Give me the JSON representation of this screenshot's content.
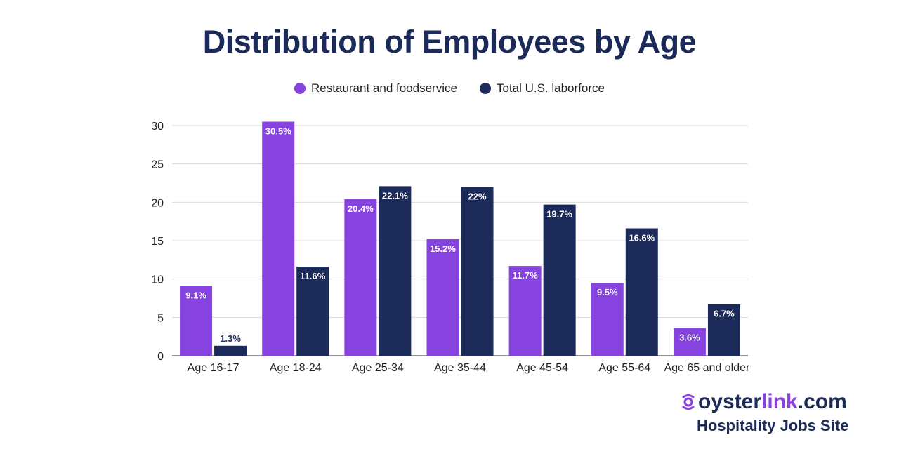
{
  "colors": {
    "restaurant": "#8743e0",
    "total": "#1b2a59",
    "grid": "#d9d9d9"
  },
  "chart_data": {
    "type": "bar",
    "title": "Distribution of Employees by Age",
    "categories": [
      "Age 16-17",
      "Age 18-24",
      "Age 25-34",
      "Age 35-44",
      "Age 45-54",
      "Age 55-64",
      "Age 65 and older"
    ],
    "series": [
      {
        "name": "Restaurant and foodservice",
        "values": [
          9.1,
          30.5,
          20.4,
          15.2,
          11.7,
          9.5,
          3.6
        ],
        "labels": [
          "9.1%",
          "30.5%",
          "20.4%",
          "15.2%",
          "11.7%",
          "9.5%",
          "3.6%"
        ]
      },
      {
        "name": "Total U.S. laborforce",
        "values": [
          1.3,
          11.6,
          22.1,
          22,
          19.7,
          16.6,
          6.7
        ],
        "labels": [
          "1.3%",
          "11.6%",
          "22.1%",
          "22%",
          "19.7%",
          "16.6%",
          "6.7%"
        ]
      }
    ],
    "yticks": [
      0,
      5,
      10,
      15,
      20,
      25,
      30
    ],
    "ylim": [
      0,
      30
    ],
    "grid": true,
    "legend": "top-center"
  },
  "brand": {
    "name_prefix": "oyster",
    "name_link": "link",
    "name_suffix": ".com",
    "tagline": "Hospitality Jobs Site",
    "icon": "oyster-logo-icon"
  }
}
